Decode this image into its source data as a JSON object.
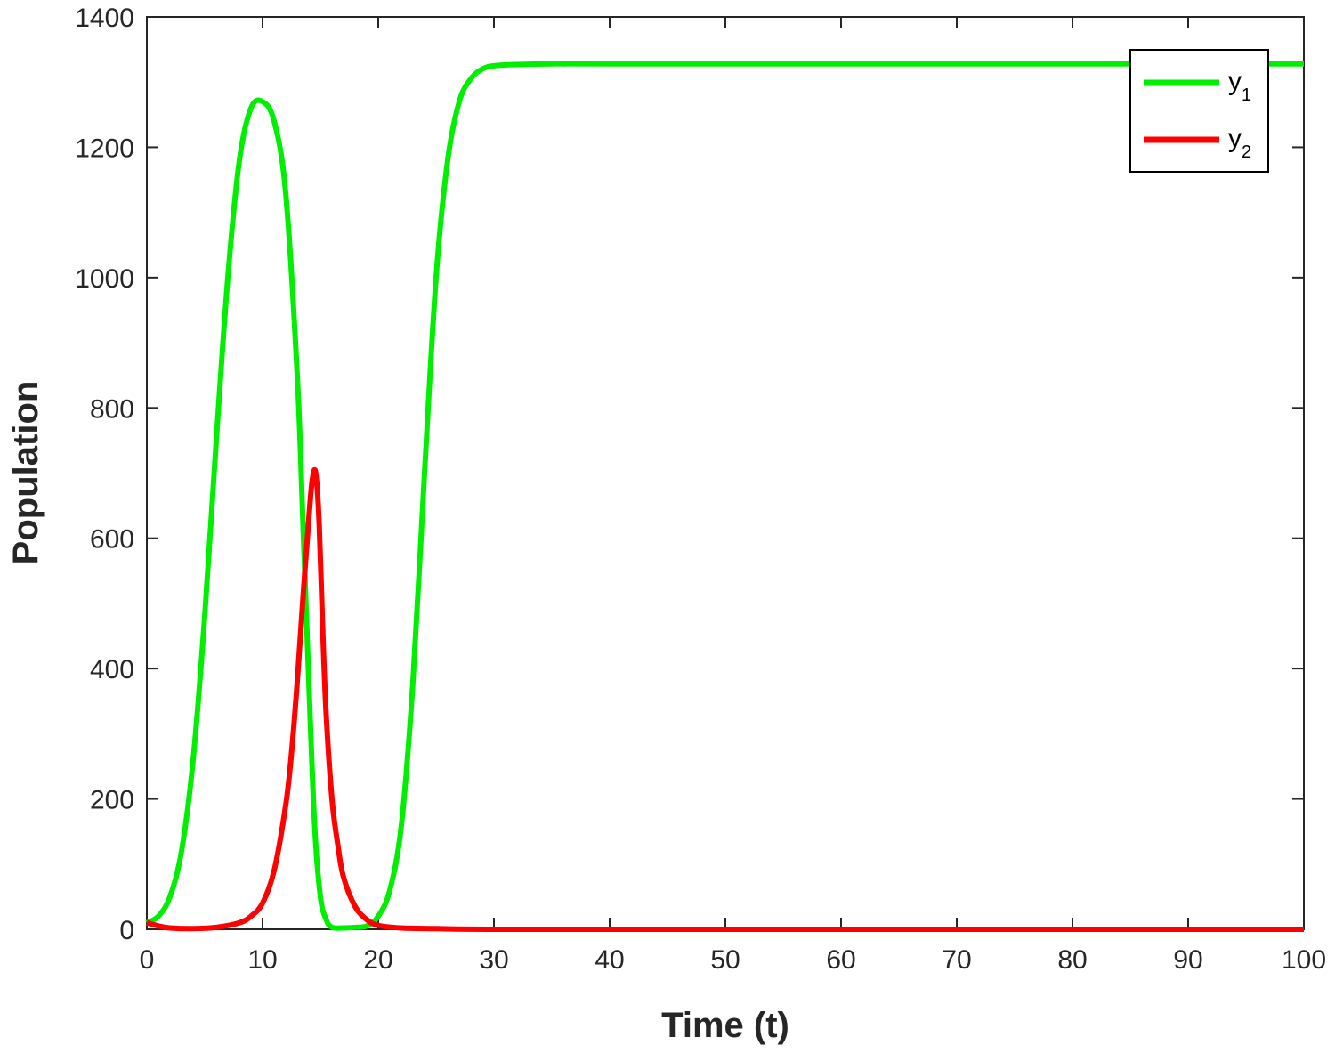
{
  "chart_data": {
    "type": "line",
    "title": "",
    "xlabel": "Time (t)",
    "ylabel": "Population",
    "xlim": [
      0,
      100
    ],
    "ylim": [
      0,
      1400
    ],
    "xticks": [
      0,
      10,
      20,
      30,
      40,
      50,
      60,
      70,
      80,
      90,
      100
    ],
    "yticks": [
      0,
      200,
      400,
      600,
      800,
      1000,
      1200,
      1400
    ],
    "grid": false,
    "legend": "top-right",
    "series": [
      {
        "name": "y",
        "subscript": "1",
        "color": "#00ee00",
        "x": [
          0,
          1,
          2,
          3,
          4,
          5,
          6,
          7,
          8,
          9,
          10,
          11,
          12,
          13,
          13.5,
          14,
          14.5,
          15,
          15.5,
          16,
          17,
          18,
          19,
          20,
          21,
          22,
          23,
          24,
          25,
          26,
          27,
          28,
          29,
          30,
          32,
          35,
          40,
          50,
          60,
          70,
          80,
          90,
          100
        ],
        "y": [
          10,
          20,
          50,
          120,
          260,
          480,
          750,
          1000,
          1180,
          1260,
          1270,
          1240,
          1130,
          850,
          620,
          380,
          160,
          50,
          15,
          3,
          2,
          3,
          5,
          20,
          60,
          160,
          380,
          700,
          1000,
          1180,
          1270,
          1305,
          1320,
          1325,
          1327,
          1328,
          1328,
          1328,
          1328,
          1328,
          1328,
          1328,
          1328
        ]
      },
      {
        "name": "y",
        "subscript": "2",
        "color": "#ff0000",
        "x": [
          0,
          1,
          2,
          4,
          6,
          8,
          9,
          10,
          11,
          12,
          12.5,
          13,
          13.5,
          14,
          14.3,
          14.6,
          14.9,
          15.2,
          15.5,
          16,
          16.5,
          17,
          18,
          19,
          20,
          22,
          25,
          30,
          50,
          100
        ],
        "y": [
          10,
          5,
          2,
          1,
          3,
          10,
          20,
          40,
          90,
          190,
          270,
          380,
          510,
          630,
          690,
          700,
          620,
          460,
          330,
          200,
          130,
          80,
          35,
          15,
          6,
          2,
          1,
          0,
          0,
          0
        ]
      }
    ]
  }
}
